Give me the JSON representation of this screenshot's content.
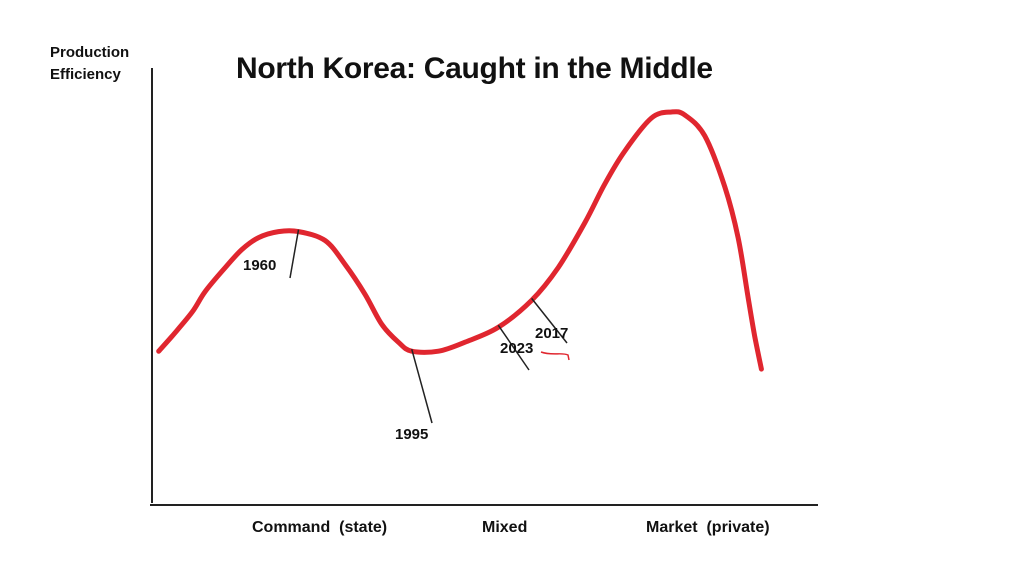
{
  "chart_data": {
    "type": "line",
    "title": "North Korea: Caught in the Middle",
    "ylabel": [
      "Production",
      "Efficiency"
    ],
    "xlabel": "",
    "x_categories": [
      "Command  (state)",
      "Mixed",
      "Market  (private)"
    ],
    "series": [
      {
        "color": "#e0262f",
        "points": [
          [
            0.01,
            0.2
          ],
          [
            0.03,
            0.25
          ],
          [
            0.06,
            0.33
          ],
          [
            0.08,
            0.4
          ],
          [
            0.11,
            0.48
          ],
          [
            0.135,
            0.54
          ],
          [
            0.16,
            0.58
          ],
          [
            0.19,
            0.6
          ],
          [
            0.22,
            0.6
          ],
          [
            0.26,
            0.57
          ],
          [
            0.29,
            0.49
          ],
          [
            0.32,
            0.39
          ],
          [
            0.345,
            0.29
          ],
          [
            0.37,
            0.23
          ],
          [
            0.39,
            0.2
          ],
          [
            0.43,
            0.2
          ],
          [
            0.47,
            0.23
          ],
          [
            0.52,
            0.28
          ],
          [
            0.57,
            0.37
          ],
          [
            0.61,
            0.48
          ],
          [
            0.65,
            0.63
          ],
          [
            0.68,
            0.76
          ],
          [
            0.71,
            0.87
          ],
          [
            0.75,
            0.98
          ],
          [
            0.78,
            1.0
          ],
          [
            0.8,
            0.99
          ],
          [
            0.83,
            0.92
          ],
          [
            0.86,
            0.75
          ],
          [
            0.88,
            0.58
          ],
          [
            0.895,
            0.38
          ],
          [
            0.905,
            0.25
          ],
          [
            0.915,
            0.14
          ]
        ]
      }
    ],
    "annotations": [
      {
        "label": "1960",
        "point": [
          0.22,
          0.6
        ]
      },
      {
        "label": "1995",
        "point": [
          0.39,
          0.2
        ]
      },
      {
        "label": "2023",
        "point": [
          0.52,
          0.28
        ]
      },
      {
        "label": "2017",
        "point": [
          0.57,
          0.37
        ]
      }
    ]
  }
}
